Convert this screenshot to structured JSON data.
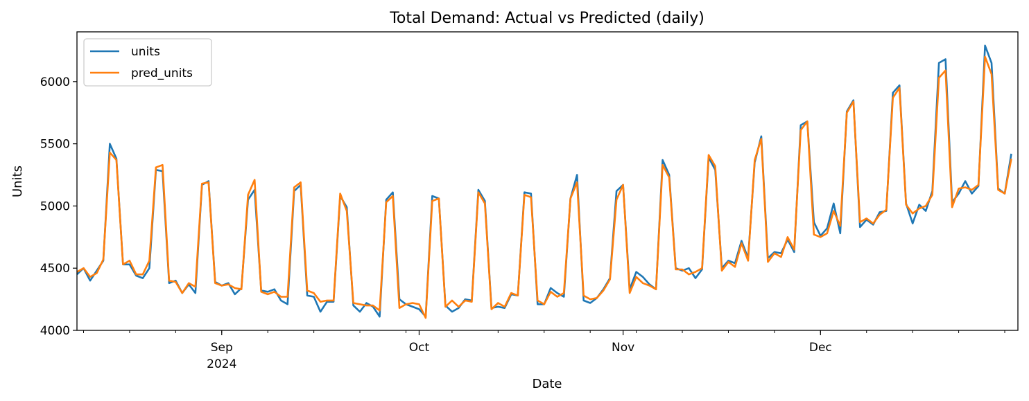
{
  "chart_data": {
    "type": "line",
    "title": "Total Demand: Actual vs Predicted (daily)",
    "xlabel": "Date",
    "ylabel": "Units",
    "x_start": "2024-08-10",
    "x_end": "2024-12-31",
    "ylim": [
      4000,
      6400
    ],
    "y_ticks": [
      "4000",
      "4500",
      "5000",
      "5500",
      "6000"
    ],
    "x_ticks": [
      {
        "date": "2024-09-01",
        "label": "Sep",
        "sublabel": "2024"
      },
      {
        "date": "2024-10-01",
        "label": "Oct",
        "sublabel": ""
      },
      {
        "date": "2024-11-01",
        "label": "Nov",
        "sublabel": ""
      },
      {
        "date": "2024-12-01",
        "label": "Dec",
        "sublabel": ""
      }
    ],
    "grid": false,
    "legend": "upper-left",
    "series": [
      {
        "name": "units",
        "color": "#1f77b4",
        "values": [
          4450,
          4500,
          4400,
          4480,
          4560,
          5500,
          5380,
          4530,
          4530,
          4440,
          4420,
          4500,
          5290,
          5280,
          4380,
          4400,
          4300,
          4370,
          4300,
          5170,
          5200,
          4390,
          4360,
          4380,
          4290,
          4340,
          5050,
          5130,
          4320,
          4310,
          4330,
          4240,
          4210,
          5120,
          5170,
          4280,
          4270,
          4150,
          4230,
          4230,
          5080,
          4990,
          4200,
          4150,
          4220,
          4190,
          4110,
          5050,
          5110,
          4250,
          4210,
          4190,
          4170,
          4110,
          5080,
          5060,
          4200,
          4150,
          4180,
          4250,
          4240,
          5130,
          5040,
          4180,
          4190,
          4180,
          4290,
          4280,
          5110,
          5100,
          4210,
          4210,
          4340,
          4300,
          4270,
          5060,
          5250,
          4240,
          4220,
          4260,
          4330,
          4420,
          5120,
          5170,
          4330,
          4470,
          4430,
          4370,
          4330,
          5370,
          5250,
          4500,
          4480,
          4500,
          4420,
          4490,
          5390,
          5290,
          4500,
          4560,
          4540,
          4720,
          4580,
          5350,
          5560,
          4580,
          4630,
          4620,
          4730,
          4630,
          5650,
          5680,
          4870,
          4760,
          4820,
          5020,
          4780,
          5760,
          5850,
          4830,
          4890,
          4850,
          4950,
          4960,
          5910,
          5970,
          5020,
          4860,
          5010,
          4960,
          5120,
          6150,
          6180,
          5030,
          5100,
          5200,
          5100,
          5160,
          6290,
          6150,
          5140,
          5100,
          5420
        ]
      },
      {
        "name": "pred_units",
        "color": "#ff7f0e",
        "values": [
          4470,
          4500,
          4430,
          4460,
          4570,
          5430,
          5370,
          4530,
          4560,
          4450,
          4450,
          4560,
          5310,
          5330,
          4400,
          4390,
          4300,
          4380,
          4350,
          5180,
          5190,
          4380,
          4360,
          4370,
          4340,
          4330,
          5090,
          5210,
          4310,
          4290,
          4310,
          4270,
          4270,
          5150,
          5190,
          4320,
          4300,
          4230,
          4240,
          4240,
          5100,
          4960,
          4220,
          4210,
          4200,
          4200,
          4160,
          5030,
          5080,
          4180,
          4210,
          4220,
          4210,
          4100,
          5040,
          5060,
          4190,
          4240,
          4190,
          4240,
          4230,
          5110,
          5020,
          4170,
          4220,
          4190,
          4300,
          4280,
          5090,
          5070,
          4240,
          4210,
          4310,
          4270,
          4300,
          5060,
          5190,
          4280,
          4250,
          4260,
          4320,
          4410,
          5050,
          5170,
          4300,
          4430,
          4380,
          4360,
          4330,
          5330,
          5230,
          4490,
          4490,
          4450,
          4470,
          4500,
          5410,
          5320,
          4480,
          4550,
          4510,
          4700,
          4560,
          5370,
          5540,
          4550,
          4620,
          4590,
          4750,
          4650,
          5610,
          5680,
          4770,
          4750,
          4780,
          4960,
          4840,
          5750,
          5840,
          4870,
          4900,
          4860,
          4930,
          4970,
          5870,
          5950,
          5010,
          4940,
          4980,
          5000,
          5090,
          6030,
          6090,
          4990,
          5140,
          5150,
          5130,
          5170,
          6200,
          6060,
          5130,
          5100,
          5380
        ]
      }
    ]
  }
}
